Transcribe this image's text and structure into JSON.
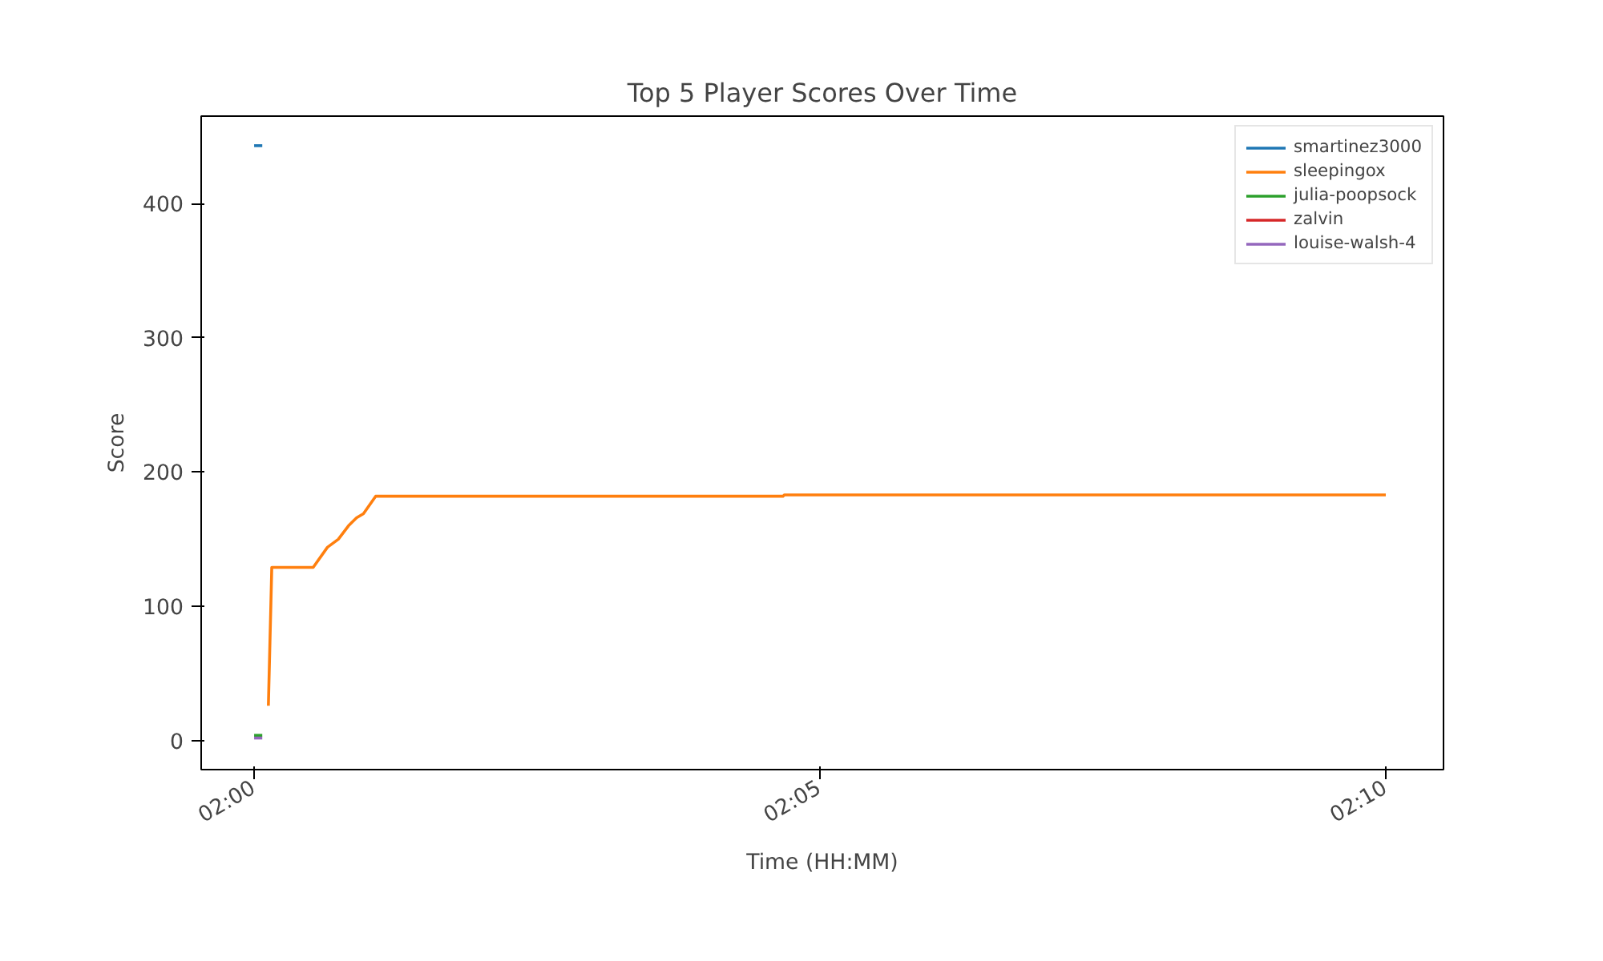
{
  "chart_data": {
    "type": "line",
    "title": "Top 5 Player Scores Over Time",
    "xlabel": "Time (HH:MM)",
    "ylabel": "Score",
    "xlim": [
      1.9922,
      2.1752
    ],
    "ylim": [
      -21.5,
      465
    ],
    "xticks": [
      {
        "value": 2.0,
        "label": "02:00"
      },
      {
        "value": 2.0833,
        "label": "02:05"
      },
      {
        "value": 2.1667,
        "label": "02:10"
      }
    ],
    "yticks": [
      0,
      100,
      200,
      300,
      400
    ],
    "grid": false,
    "legend": "top right",
    "line_style": "solid",
    "marker": "none",
    "series": [
      {
        "name": "smartinez3000",
        "color": "#1f77b4",
        "x": [
          2.0,
          2.0012
        ],
        "values": [
          443,
          443
        ]
      },
      {
        "name": "sleepingox",
        "color": "#ff7f0e",
        "x": [
          2.0021,
          2.0026,
          2.0087,
          2.0108,
          2.0124,
          2.0139,
          2.0151,
          2.0161,
          2.0179,
          2.0779,
          2.0781,
          2.1667
        ],
        "values": [
          26,
          129,
          129,
          144,
          150,
          160,
          166,
          169,
          182,
          182,
          183,
          183
        ]
      },
      {
        "name": "julia-poopsock",
        "color": "#2ca02c",
        "x": [
          2.0,
          2.0012
        ],
        "values": [
          4,
          4
        ]
      },
      {
        "name": "zalvin",
        "color": "#d62728"
      },
      {
        "name": "louise-walsh-4",
        "color": "#9467bd",
        "x": [
          2.0,
          2.0012
        ],
        "values": [
          2,
          2
        ]
      }
    ]
  }
}
